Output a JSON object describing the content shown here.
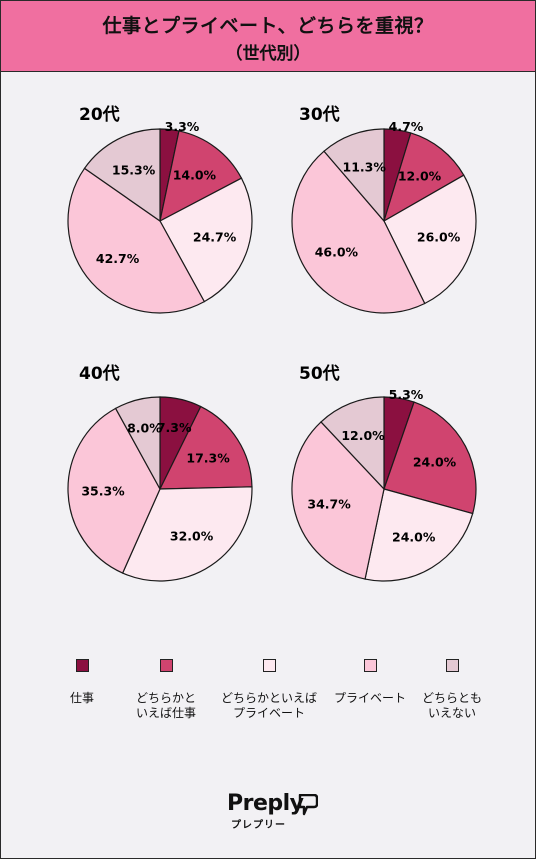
{
  "header": {
    "title_line1": "仕事とプライベート、どちらを重視？",
    "title_line2": "（世代別）"
  },
  "colors": {
    "header_bg": "#f06fa0",
    "categories": [
      "#8b1040",
      "#d0446f",
      "#fde9f0",
      "#fbc6d8",
      "#e4c9d3"
    ]
  },
  "legend": [
    {
      "label": "仕事",
      "color": "#8b1040"
    },
    {
      "label": "どちらかと\nいえば仕事",
      "color": "#d0446f"
    },
    {
      "label": "どちらかといえば\nプライベート",
      "color": "#fde9f0"
    },
    {
      "label": "プライベート",
      "color": "#fbc6d8"
    },
    {
      "label": "どちらとも\nいえない",
      "color": "#e4c9d3"
    }
  ],
  "chart_data": [
    {
      "type": "pie",
      "title": "20代",
      "categories": [
        "仕事",
        "どちらかといえば仕事",
        "どちらかといえばプライベート",
        "プライベート",
        "どちらともいえない"
      ],
      "values": [
        3.3,
        14.0,
        24.7,
        42.7,
        15.3
      ],
      "labels": [
        "3.3%",
        "14.0%",
        "24.7%",
        "42.7%",
        "15.3%"
      ]
    },
    {
      "type": "pie",
      "title": "30代",
      "categories": [
        "仕事",
        "どちらかといえば仕事",
        "どちらかといえばプライベート",
        "プライベート",
        "どちらともいえない"
      ],
      "values": [
        4.7,
        12.0,
        26.0,
        46.0,
        11.3
      ],
      "labels": [
        "4.7%",
        "12.0%",
        "26.0%",
        "46.0%",
        "11.3%"
      ]
    },
    {
      "type": "pie",
      "title": "40代",
      "categories": [
        "仕事",
        "どちらかといえば仕事",
        "どちらかといえばプライベート",
        "プライベート",
        "どちらともいえない"
      ],
      "values": [
        7.3,
        17.3,
        32.0,
        35.3,
        8.0
      ],
      "labels": [
        "7.3%",
        "17.3%",
        "32.0%",
        "35.3%",
        "8.0%"
      ]
    },
    {
      "type": "pie",
      "title": "50代",
      "categories": [
        "仕事",
        "どちらかといえば仕事",
        "どちらかといえばプライベート",
        "プライベート",
        "どちらともいえない"
      ],
      "values": [
        5.3,
        24.0,
        24.0,
        34.7,
        12.0
      ],
      "labels": [
        "5.3%",
        "24.0%",
        "24.0%",
        "34.7%",
        "12.0%"
      ]
    }
  ],
  "logo": {
    "name": "Preply",
    "subtitle": "プレプリー",
    "icon": "preply-logo-icon"
  }
}
